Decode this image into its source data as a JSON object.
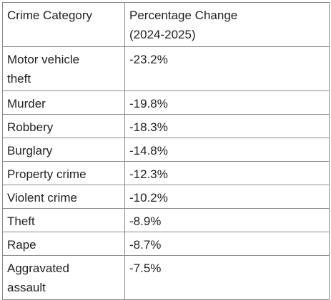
{
  "table": {
    "headers": [
      "Crime Category",
      "Percentage Change\n(2024-2025)"
    ],
    "header_line1": "Percentage Change",
    "header_line2": "(2024-2025)",
    "rows": [
      {
        "category_line1": "Motor vehicle",
        "category_line2": "theft",
        "change": "-23.2%"
      },
      {
        "category": "Murder",
        "change": "-19.8%"
      },
      {
        "category": "Robbery",
        "change": "-18.3%"
      },
      {
        "category": "Burglary",
        "change": "-14.8%"
      },
      {
        "category": "Property crime",
        "change": "-12.3%"
      },
      {
        "category": "Violent crime",
        "change": "-10.2%"
      },
      {
        "category": "Theft",
        "change": "-8.9%"
      },
      {
        "category": "Rape",
        "change": "-8.7%"
      },
      {
        "category_line1": "Aggravated",
        "category_line2": "assault",
        "change": "-7.5%"
      }
    ]
  }
}
